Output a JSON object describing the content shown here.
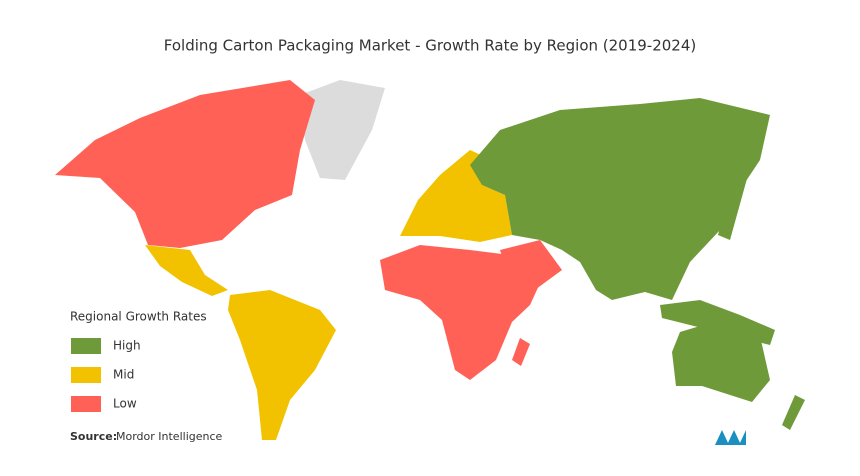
{
  "title": "Folding Carton Packaging Market  - Growth Rate by Region (2019-2024)",
  "legend": {
    "title": "Regional Growth Rates",
    "items": [
      {
        "label": "High",
        "color": "#6f9a3a"
      },
      {
        "label": "Mid",
        "color": "#f2c200"
      },
      {
        "label": "Low",
        "color": "#ff6157"
      }
    ]
  },
  "source": {
    "label": "Source:",
    "text": "Mordor Intelligence"
  }
}
